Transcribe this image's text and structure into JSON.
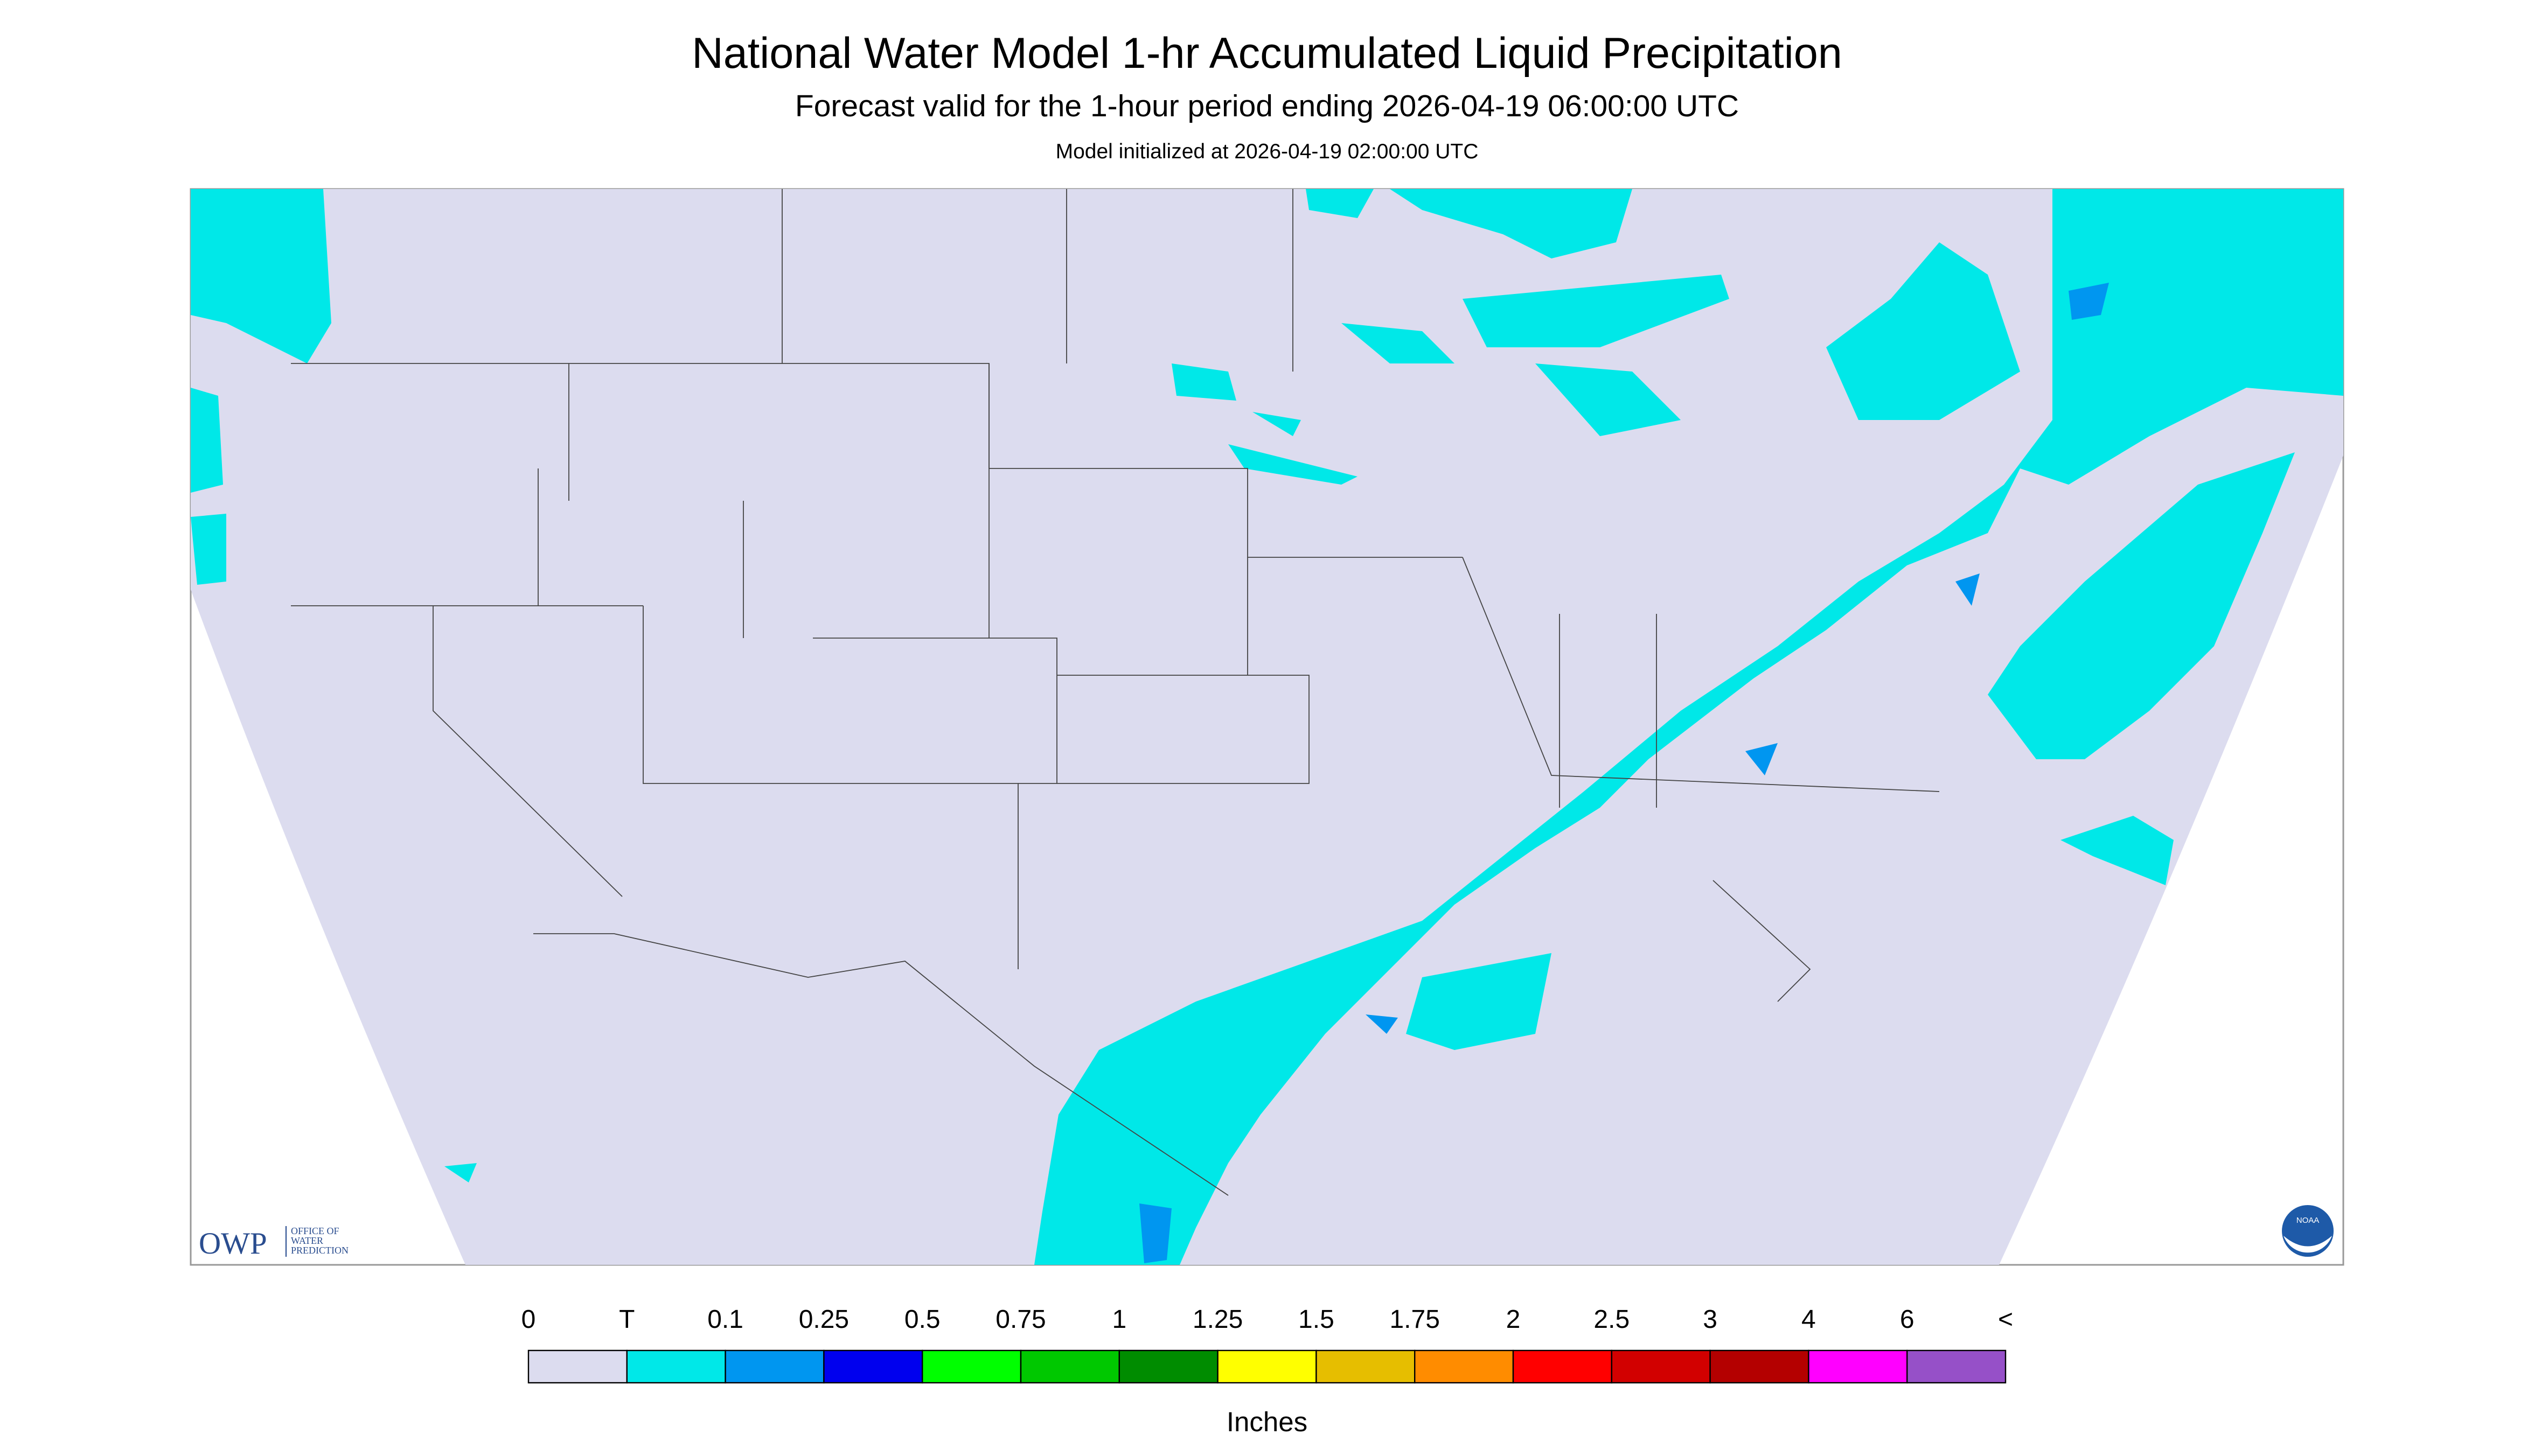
{
  "header": {
    "title": "National Water Model 1-hr Accumulated Liquid Precipitation",
    "subtitle": "Forecast valid for the 1-hour period ending 2026-04-19 06:00:00 UTC",
    "init": "Model initialized at 2026-04-19 02:00:00 UTC"
  },
  "logos": {
    "owp": "OWP",
    "owp_name": [
      "OFFICE OF",
      "WATER",
      "PREDICTION"
    ],
    "noaa": "NOAA"
  },
  "legend": {
    "labels": [
      "0",
      "T",
      "0.1",
      "0.25",
      "0.5",
      "0.75",
      "1",
      "1.25",
      "1.5",
      "1.75",
      "2",
      "2.5",
      "3",
      "4",
      "6",
      "<"
    ],
    "colors": [
      "#dcdcef",
      "#00e8e8",
      "#0096f0",
      "#0000ee",
      "#00ff00",
      "#00c800",
      "#008c00",
      "#ffff00",
      "#e6be00",
      "#ff8c00",
      "#ff0000",
      "#d20000",
      "#b40000",
      "#ff00ff",
      "#9650c8"
    ],
    "units": "Inches"
  }
}
